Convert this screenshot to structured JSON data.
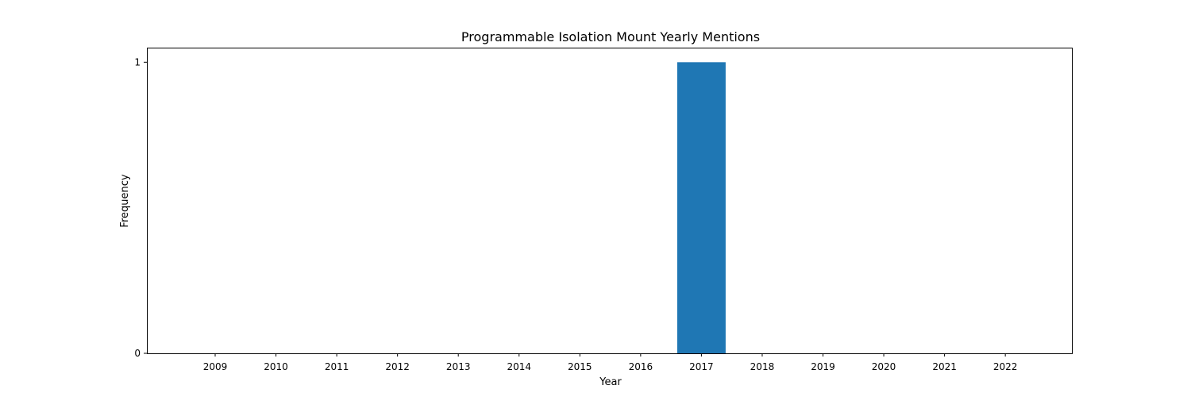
{
  "chart_data": {
    "type": "bar",
    "title": "Programmable Isolation Mount Yearly Mentions",
    "xlabel": "Year",
    "ylabel": "Frequency",
    "categories": [
      "2009",
      "2010",
      "2011",
      "2012",
      "2013",
      "2014",
      "2015",
      "2016",
      "2017",
      "2018",
      "2019",
      "2020",
      "2021",
      "2022"
    ],
    "values": [
      0,
      0,
      0,
      0,
      0,
      0,
      0,
      0,
      1,
      0,
      0,
      0,
      0,
      0
    ],
    "ylim": [
      0,
      1.05
    ],
    "yticks": [
      0,
      1
    ],
    "bar_color": "#1f77b4",
    "grid": false,
    "legend": "none"
  }
}
